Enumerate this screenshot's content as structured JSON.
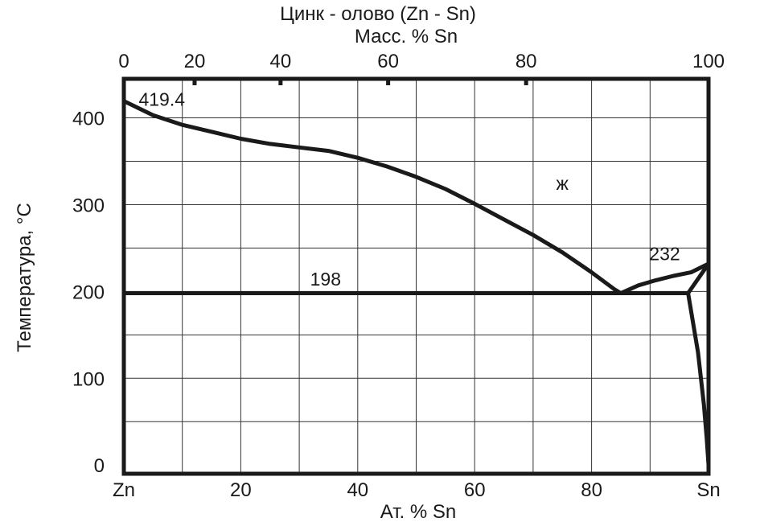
{
  "chart_data": {
    "type": "line",
    "title": "Цинк - олово (Zn - Sn)",
    "subtitle": "Масс. % Sn",
    "xlabel": "Ат. % Sn",
    "ylabel": "Температура, °C",
    "xlim": [
      0,
      100
    ],
    "ylim": [
      -10,
      445
    ],
    "grid": true,
    "x_ticks": [
      0,
      20,
      40,
      60,
      80,
      100
    ],
    "x_tick_labels": [
      "Zn",
      "20",
      "40",
      "60",
      "80",
      "Sn"
    ],
    "x_top_ticks": [
      {
        "at_percent": 0,
        "mass_percent": 0,
        "label": "0"
      },
      {
        "at_percent": 12.1,
        "mass_percent": 20,
        "label": "20"
      },
      {
        "at_percent": 26.8,
        "mass_percent": 40,
        "label": "40"
      },
      {
        "at_percent": 45.2,
        "mass_percent": 60,
        "label": "60"
      },
      {
        "at_percent": 68.8,
        "mass_percent": 80,
        "label": "80"
      },
      {
        "at_percent": 100,
        "mass_percent": 100,
        "label": "100"
      }
    ],
    "y_ticks": [
      0,
      100,
      200,
      300,
      400
    ],
    "y_tick_labels": [
      "0",
      "100",
      "200",
      "300",
      "400"
    ],
    "series": [
      {
        "role": "liquidus-zn-side",
        "x": [
          0,
          5,
          10,
          15,
          20,
          25,
          30,
          35,
          40,
          45,
          50,
          55,
          60,
          65,
          70,
          75,
          80,
          84,
          85
        ],
        "y": [
          419.4,
          403,
          392,
          384,
          376,
          370,
          366,
          362,
          354,
          344,
          332,
          318,
          301,
          283,
          265,
          245,
          222,
          202,
          198
        ]
      },
      {
        "role": "liquidus-sn-side",
        "x": [
          85,
          88,
          91,
          94,
          97,
          100
        ],
        "y": [
          198,
          207,
          213,
          218,
          222,
          232
        ]
      },
      {
        "role": "eutectic-isotherm",
        "x": [
          0,
          96.5
        ],
        "y": [
          198,
          198
        ]
      },
      {
        "role": "solidus-sn",
        "x": [
          96.5,
          100
        ],
        "y": [
          198,
          232
        ]
      },
      {
        "role": "solvus-sn",
        "x": [
          96.5,
          98.2,
          99.2,
          99.7,
          100
        ],
        "y": [
          198,
          130,
          70,
          30,
          0
        ]
      }
    ],
    "annotations": [
      {
        "text": "419.4",
        "x": 6.5,
        "y": 414
      },
      {
        "text": "ж",
        "x": 75,
        "y": 317
      },
      {
        "text": "232",
        "x": 92.5,
        "y": 236
      },
      {
        "text": "198",
        "x": 34.5,
        "y": 207
      }
    ]
  }
}
